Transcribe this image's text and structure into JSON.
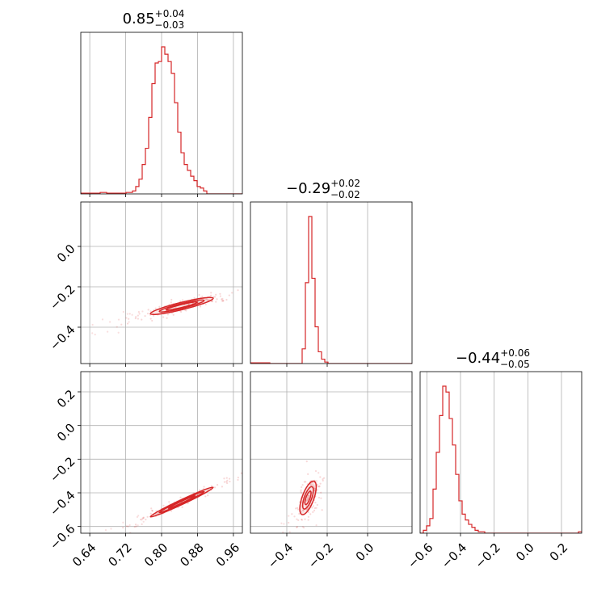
{
  "figure": {
    "color": "#d62728"
  },
  "chart_data": {
    "type": "corner",
    "parameters": 3,
    "titles": [
      {
        "value": "0.85",
        "plus": "+0.04",
        "minus": "−0.03"
      },
      {
        "value": "−0.29",
        "plus": "+0.02",
        "minus": "−0.02"
      },
      {
        "value": "−0.44",
        "plus": "+0.06",
        "minus": "−0.05"
      }
    ],
    "ranges": [
      [
        0.62,
        0.98
      ],
      [
        -0.58,
        0.22
      ],
      [
        -0.64,
        0.32
      ]
    ],
    "ticks": [
      {
        "values": [
          0.64,
          0.72,
          0.8,
          0.88,
          0.96
        ],
        "labels": [
          "0.64",
          "0.72",
          "0.80",
          "0.88",
          "0.96"
        ]
      },
      {
        "values": [
          -0.4,
          -0.2,
          0.0
        ],
        "labels": [
          "−0.4",
          "−0.2",
          "0.0"
        ]
      },
      {
        "values": [
          -0.6,
          -0.4,
          -0.2,
          0.0,
          0.2
        ],
        "labels": [
          "−0.6",
          "−0.4",
          "−0.2",
          "0.0",
          "0.2"
        ]
      }
    ],
    "histograms": [
      {
        "param": 0,
        "bin_start": 0.62,
        "bin_width": 0.0072,
        "values": [
          0.5,
          0.5,
          0.5,
          0.5,
          0.5,
          0.5,
          1,
          1,
          0.5,
          0.5,
          0.5,
          0.5,
          0.5,
          0.5,
          1,
          1,
          2,
          5,
          10,
          20,
          31,
          52,
          75,
          89,
          90,
          100,
          95,
          90,
          82,
          62,
          42,
          28,
          20,
          16,
          12,
          9,
          5,
          4,
          2,
          0,
          0,
          0,
          0,
          0,
          0,
          0,
          0,
          0,
          0,
          0
        ]
      },
      {
        "param": 1,
        "bin_start": -0.58,
        "bin_width": 0.016,
        "values": [
          0.5,
          0.5,
          0.5,
          0.5,
          0.5,
          0.5,
          0,
          0,
          0,
          0,
          0,
          0,
          0,
          0,
          0,
          0,
          10,
          55,
          100,
          58,
          25,
          8,
          3,
          1,
          0,
          0,
          0,
          0,
          0,
          0,
          0,
          0,
          0,
          0,
          0,
          0,
          0,
          0,
          0,
          0,
          0,
          0,
          0,
          0,
          0,
          0,
          0,
          0,
          0,
          0
        ]
      },
      {
        "param": 2,
        "bin_start": -0.64,
        "bin_width": 0.0192,
        "values": [
          0,
          2,
          5,
          10,
          30,
          55,
          80,
          100,
          96,
          78,
          60,
          40,
          22,
          13,
          9,
          6,
          4,
          2,
          1,
          1,
          0,
          0,
          0,
          0,
          0,
          0,
          0,
          0,
          0,
          0,
          0,
          0,
          0,
          0,
          0,
          0,
          0,
          0,
          0,
          0,
          0,
          0,
          0,
          0,
          0,
          0,
          0,
          0,
          0,
          1
        ]
      }
    ],
    "contours": [
      {
        "x_param": 0,
        "y_param": 1,
        "center": [
          0.845,
          -0.295
        ],
        "slope": 0.55,
        "half_lengths": [
          0.07,
          0.05,
          0.035
        ],
        "half_widths": [
          0.018,
          0.012,
          0.007
        ]
      },
      {
        "x_param": 0,
        "y_param": 2,
        "center": [
          0.845,
          -0.455
        ],
        "slope": 1.25,
        "half_lengths": [
          0.07,
          0.05,
          0.03
        ],
        "half_widths": [
          0.014,
          0.009,
          0.005
        ]
      },
      {
        "x_param": 1,
        "y_param": 2,
        "center": [
          -0.295,
          -0.43
        ],
        "slope": 3.3,
        "half_lengths": [
          0.03,
          0.02,
          0.012
        ],
        "half_widths": [
          0.035,
          0.022,
          0.012
        ]
      }
    ]
  }
}
